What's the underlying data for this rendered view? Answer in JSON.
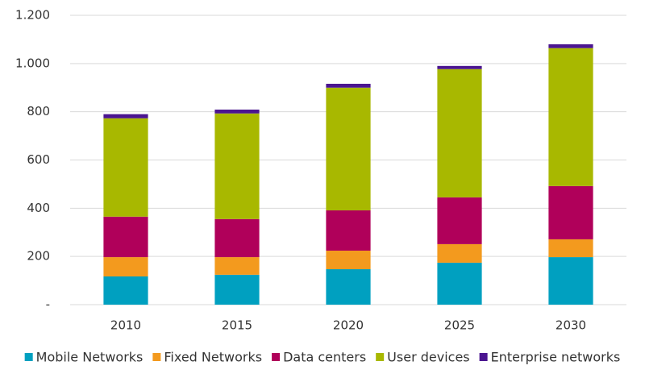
{
  "chart_data": {
    "type": "stacked-bar",
    "categories": [
      "2010",
      "2015",
      "2020",
      "2025",
      "2030"
    ],
    "series": [
      {
        "name": "Mobile Networks",
        "color": "#00a0c0",
        "values": [
          117,
          124,
          147,
          174,
          197
        ]
      },
      {
        "name": "Fixed Networks",
        "color": "#f39a1e",
        "values": [
          80,
          73,
          77,
          77,
          74
        ]
      },
      {
        "name": "Data centers",
        "color": "#b0005a",
        "values": [
          168,
          158,
          167,
          194,
          221
        ]
      },
      {
        "name": "User devices",
        "color": "#a8b800",
        "values": [
          408,
          438,
          509,
          532,
          572
        ]
      },
      {
        "name": "Enterprise networks",
        "color": "#4b1590",
        "values": [
          17,
          16,
          16,
          13,
          16
        ]
      }
    ],
    "ylim": [
      0,
      1200
    ],
    "yticks": [
      {
        "value": 0,
        "label": "-"
      },
      200,
      400,
      600,
      800,
      {
        "value": 1000,
        "label": "1.000"
      },
      {
        "value": 1200,
        "label": "1.200"
      }
    ],
    "grid": true,
    "legend": "bottom"
  }
}
